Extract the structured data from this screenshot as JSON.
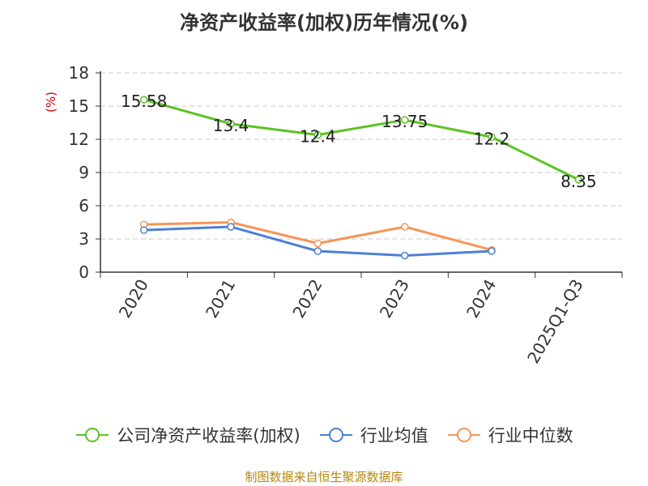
{
  "chart_data": {
    "type": "line",
    "title": "净资产收益率(加权)历年情况(%)",
    "ylabel": "(%)",
    "categories": [
      "2020",
      "2021",
      "2022",
      "2023",
      "2024",
      "2025Q1-Q3"
    ],
    "y_ticks": [
      "0",
      "3",
      "6",
      "9",
      "12",
      "15",
      "18"
    ],
    "ylim": [
      0,
      18
    ],
    "grid": true,
    "legend_position": "bottom",
    "series": [
      {
        "name": "公司净资产收益率(加权)",
        "color": "#5cc225",
        "values": [
          15.58,
          13.4,
          12.4,
          13.75,
          12.2,
          8.35
        ],
        "labels": [
          "15.58",
          "13.4",
          "12.4",
          "13.75",
          "12.2",
          "8.35"
        ]
      },
      {
        "name": "行业均值",
        "color": "#4e7fd6",
        "values": [
          3.8,
          4.1,
          1.9,
          1.5,
          1.9,
          null
        ]
      },
      {
        "name": "行业中位数",
        "color": "#f89458",
        "values": [
          4.3,
          4.5,
          2.6,
          4.1,
          2.0,
          null
        ]
      }
    ]
  },
  "source_text": "制图数据来自恒生聚源数据库"
}
